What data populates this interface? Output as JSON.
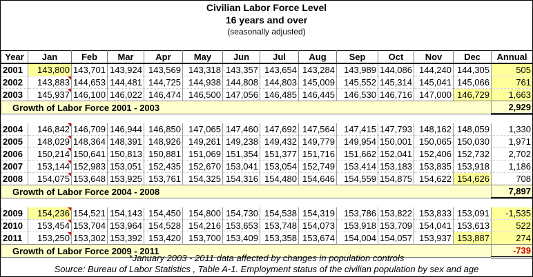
{
  "title": "Civilian Labor Force Level",
  "subtitle": "16 years and over",
  "note": "(seasonally adjusted)",
  "headers": [
    "Year",
    "Jan",
    "Feb",
    "Mar",
    "Apr",
    "May",
    "Jun",
    "Jul",
    "Aug",
    "Sep",
    "Oct",
    "Nov",
    "Dec",
    "Annual"
  ],
  "groups": [
    {
      "rows": [
        {
          "year": "2001",
          "values": [
            "143,800",
            "143,701",
            "143,924",
            "143,569",
            "143,318",
            "143,357",
            "143,654",
            "143,284",
            "143,989",
            "144,086",
            "144,240",
            "144,305"
          ],
          "annual": "505"
        },
        {
          "year": "2002",
          "values": [
            "143,883",
            "144,653",
            "144,481",
            "144,725",
            "144,938",
            "144,808",
            "144,803",
            "145,009",
            "145,552",
            "145,314",
            "145,041",
            "145,066"
          ],
          "annual": "761"
        },
        {
          "year": "2003",
          "values": [
            "145,937",
            "146,100",
            "146,022",
            "146,474",
            "146,500",
            "147,056",
            "146,485",
            "146,445",
            "146,530",
            "146,716",
            "147,000",
            "146,729"
          ],
          "annual": "1,663"
        }
      ],
      "growth_label": "Growth of Labor Force 2001 - 2003",
      "growth_value": "2,929"
    },
    {
      "rows": [
        {
          "year": "2004",
          "values": [
            "146,842",
            "146,709",
            "146,944",
            "146,850",
            "147,065",
            "147,460",
            "147,692",
            "147,564",
            "147,415",
            "147,793",
            "148,162",
            "148,059"
          ],
          "annual": "1,330"
        },
        {
          "year": "2005",
          "values": [
            "148,029",
            "148,364",
            "148,391",
            "148,926",
            "149,261",
            "149,238",
            "149,432",
            "149,779",
            "149,954",
            "150,001",
            "150,065",
            "150,030"
          ],
          "annual": "1,971"
        },
        {
          "year": "2006",
          "values": [
            "150,214",
            "150,641",
            "150,813",
            "150,881",
            "151,069",
            "151,354",
            "151,377",
            "151,716",
            "151,662",
            "152,041",
            "152,406",
            "152,732"
          ],
          "annual": "2,702"
        },
        {
          "year": "2007",
          "values": [
            "153,144",
            "152,983",
            "153,051",
            "152,435",
            "152,670",
            "153,041",
            "153,054",
            "152,749",
            "153,414",
            "153,183",
            "153,835",
            "153,918"
          ],
          "annual": "1,186"
        },
        {
          "year": "2008",
          "values": [
            "154,075",
            "153,648",
            "153,925",
            "153,761",
            "154,325",
            "154,316",
            "154,480",
            "154,646",
            "154,559",
            "154,875",
            "154,622",
            "154,626"
          ],
          "annual": "708"
        }
      ],
      "growth_label": "Growth of Labor Force 2004 - 2008",
      "growth_value": "7,897"
    },
    {
      "rows": [
        {
          "year": "2009",
          "values": [
            "154,236",
            "154,521",
            "154,143",
            "154,450",
            "154,800",
            "154,730",
            "154,538",
            "154,319",
            "153,786",
            "153,822",
            "153,833",
            "153,091"
          ],
          "annual": "-1,535"
        },
        {
          "year": "2010",
          "values": [
            "153,454",
            "153,704",
            "153,964",
            "154,528",
            "154,216",
            "153,653",
            "153,748",
            "154,073",
            "153,918",
            "153,709",
            "154,041",
            "153,613"
          ],
          "annual": "522"
        },
        {
          "year": "2011",
          "values": [
            "153,250",
            "153,302",
            "153,392",
            "153,420",
            "153,700",
            "153,409",
            "153,358",
            "153,674",
            "154,004",
            "154,057",
            "153,937",
            "153,887"
          ],
          "annual": "274"
        }
      ],
      "growth_label": "Growth of Labor Force 2009 - 2011",
      "growth_value": "-739"
    }
  ],
  "footnote": "*January 2003 - 2011 data affected by changes in population controls",
  "source": "Source: Bureau of Labor Statistics , Table A-1. Employment status of the civilian population by sex and age",
  "colors": {
    "highlight": "#ffff99",
    "growth_band": "#ffffcc",
    "negative": "#d00000",
    "flag": "#cc0000"
  }
}
